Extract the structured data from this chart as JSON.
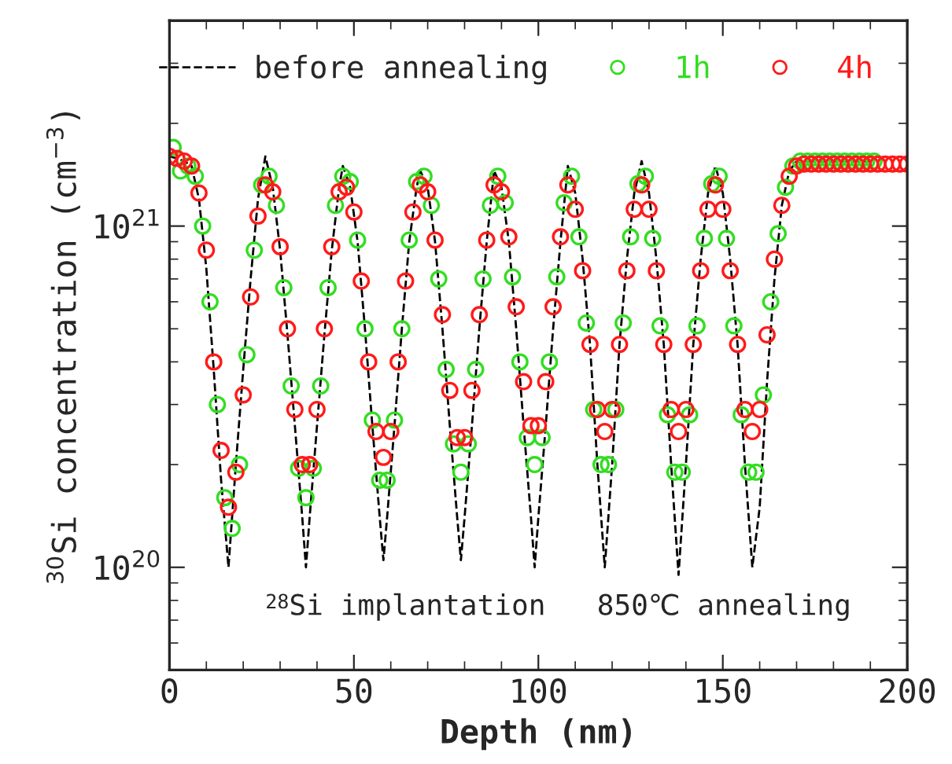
{
  "chart_data": {
    "type": "scatter",
    "xlabel": "Depth (nm)",
    "ylabel": "$^{30}$Si concentration (cm$^{−3}$)",
    "log": "y",
    "xlim": [
      0,
      200
    ],
    "ylim": [
      5e+19,
      4e+21
    ],
    "xticks": [
      0,
      {
        "value": 10,
        "label": null
      },
      {
        "value": 20,
        "label": null
      },
      {
        "value": 30,
        "label": null
      },
      {
        "value": 40,
        "label": null
      },
      50,
      {
        "value": 60,
        "label": null
      },
      {
        "value": 70,
        "label": null
      },
      {
        "value": 80,
        "label": null
      },
      {
        "value": 90,
        "label": null
      },
      100,
      {
        "value": 110,
        "label": null
      },
      {
        "value": 120,
        "label": null
      },
      {
        "value": 130,
        "label": null
      },
      {
        "value": 140,
        "label": null
      },
      150,
      {
        "value": 160,
        "label": null
      },
      {
        "value": 170,
        "label": null
      },
      {
        "value": 180,
        "label": null
      },
      {
        "value": 190,
        "label": null
      },
      200
    ],
    "yticks": [
      {
        "value": 6e+19,
        "label": null
      },
      {
        "value": 7e+19,
        "label": null
      },
      {
        "value": 8e+19,
        "label": null
      },
      {
        "value": 9e+19,
        "label": null
      },
      {
        "value": 1e+20,
        "label": "10$^{20}$"
      },
      {
        "value": 2e+20,
        "label": null
      },
      {
        "value": 3e+20,
        "label": null
      },
      {
        "value": 4e+20,
        "label": null
      },
      {
        "value": 5e+20,
        "label": null
      },
      {
        "value": 6e+20,
        "label": null
      },
      {
        "value": 7e+20,
        "label": null
      },
      {
        "value": 8e+20,
        "label": null
      },
      {
        "value": 9e+20,
        "label": null
      },
      {
        "value": 1e+21,
        "label": "10$^{21}$"
      },
      {
        "value": 2e+21,
        "label": null
      },
      {
        "value": 3e+21,
        "label": null
      }
    ],
    "grid": false,
    "legend": "top",
    "annotations": [
      "$^{28}$Si implantation   850℃ annealing"
    ],
    "series": [
      {
        "name": "before annealing",
        "type": "line",
        "line_style": "dashed",
        "marker": "none",
        "color": "#000000",
        "x": [
          0,
          2,
          4,
          6,
          8,
          10,
          12,
          14,
          16,
          18,
          20,
          22,
          24,
          26,
          28,
          30,
          32,
          34,
          36,
          37,
          38,
          40,
          42,
          44,
          46,
          47,
          49,
          51,
          53,
          55,
          57,
          58,
          59,
          61,
          63,
          65,
          67,
          68,
          70,
          72,
          74,
          76,
          78,
          79,
          80,
          82,
          84,
          86,
          88,
          90,
          92,
          94,
          96,
          98,
          99,
          100,
          102,
          104,
          106,
          108,
          110,
          112,
          114,
          116,
          118,
          120,
          122,
          124,
          126,
          128,
          130,
          132,
          134,
          136,
          138,
          140,
          142,
          144,
          146,
          148,
          150,
          152,
          154,
          156,
          158,
          160,
          162,
          164,
          166,
          168,
          170,
          180,
          190
        ],
        "values": [
          1.6e+21,
          1.58e+21,
          1.55e+21,
          1.5e+21,
          1.2e+21,
          7.5e+20,
          3.8e+20,
          1.8e+20,
          1e+20,
          2e+20,
          3.8e+20,
          7e+20,
          1.2e+21,
          1.6e+21,
          1.3e+21,
          8.5e+20,
          4.8e+20,
          2.6e+20,
          1.4e+20,
          1e+20,
          1.4e+20,
          2.6e+20,
          4.8e+20,
          8.5e+20,
          1.3e+21,
          1.5e+21,
          1.3e+21,
          9e+20,
          5e+20,
          2.6e+20,
          1.4e+20,
          1.05e+20,
          1.4e+20,
          2.6e+20,
          5e+20,
          9e+20,
          1.3e+21,
          1.45e+21,
          1.3e+21,
          9e+20,
          5e+20,
          2.6e+20,
          1.4e+20,
          1.05e+20,
          1.4e+20,
          2.6e+20,
          5e+20,
          9e+20,
          1.45e+21,
          1.3e+21,
          9e+20,
          5e+20,
          2.6e+20,
          1.4e+20,
          1e+20,
          1.4e+20,
          2.6e+20,
          5e+20,
          9e+20,
          1.5e+21,
          1.25e+21,
          8e+20,
          4.5e+20,
          2e+20,
          1e+20,
          2e+20,
          4.5e+20,
          8e+20,
          1.25e+21,
          1.55e+21,
          1.25e+21,
          8e+20,
          4.5e+20,
          2e+20,
          9.5e+19,
          2e+20,
          4.5e+20,
          8e+20,
          1.25e+21,
          1.5e+21,
          1.25e+21,
          8e+20,
          4.5e+20,
          2e+20,
          1e+20,
          1.5e+20,
          3.5e+20,
          7e+20,
          1.15e+21,
          1.45e+21,
          1.55e+21,
          1.55e+21,
          1.55e+21
        ]
      },
      {
        "name": "1h",
        "marker": "circle",
        "color": "#33dd22",
        "x": [
          1,
          3,
          5,
          7,
          9,
          11,
          13,
          15,
          17,
          19,
          21,
          23,
          25,
          27,
          29,
          31,
          33,
          35,
          37,
          39,
          41,
          43,
          45,
          47,
          49,
          51,
          53,
          55,
          57,
          59,
          61,
          63,
          65,
          67,
          69,
          71,
          73,
          75,
          77,
          79,
          81,
          83,
          85,
          87,
          89,
          91,
          93,
          95,
          97,
          99,
          101,
          103,
          105,
          107,
          109,
          111,
          113,
          115,
          117,
          119,
          121,
          123,
          125,
          127,
          129,
          131,
          133,
          135,
          137,
          139,
          141,
          143,
          145,
          147,
          149,
          151,
          153,
          155,
          157,
          159,
          161,
          163,
          165,
          167,
          169,
          171,
          173,
          175,
          177,
          179,
          181,
          183,
          185,
          187,
          189,
          191
        ],
        "values": [
          1.7e+21,
          1.45e+21,
          1.5e+21,
          1.4e+21,
          1e+21,
          6e+20,
          3e+20,
          1.6e+20,
          1.3e+20,
          2e+20,
          4.2e+20,
          8.5e+20,
          1.32e+21,
          1.4e+21,
          1.15e+21,
          6.6e+20,
          3.4e+20,
          1.95e+20,
          1.6e+20,
          1.95e+20,
          3.4e+20,
          6.6e+20,
          1.15e+21,
          1.4e+21,
          1.35e+21,
          9.1e+20,
          5e+20,
          2.7e+20,
          1.8e+20,
          1.8e+20,
          2.7e+20,
          5e+20,
          9.1e+20,
          1.35e+21,
          1.4e+21,
          1.15e+21,
          7e+20,
          3.8e+20,
          2.3e+20,
          1.9e+20,
          2.3e+20,
          3.8e+20,
          7e+20,
          1.15e+21,
          1.4e+21,
          1.17e+21,
          7.1e+20,
          4e+20,
          2.4e+20,
          2e+20,
          2.4e+20,
          4e+20,
          7.1e+20,
          1.17e+21,
          1.4e+21,
          9.3e+20,
          5.2e+20,
          2.9e+20,
          2e+20,
          2e+20,
          2.9e+20,
          5.2e+20,
          9.3e+20,
          1.33e+21,
          1.4e+21,
          9.2e+20,
          5.1e+20,
          2.8e+20,
          1.9e+20,
          1.9e+20,
          2.8e+20,
          5.1e+20,
          9.2e+20,
          1.33e+21,
          1.4e+21,
          9.2e+20,
          5.1e+20,
          2.8e+20,
          1.9e+20,
          1.9e+20,
          3.2e+20,
          6e+20,
          9.5e+20,
          1.3e+21,
          1.5e+21,
          1.55e+21,
          1.55e+21,
          1.55e+21,
          1.55e+21,
          1.55e+21,
          1.55e+21,
          1.55e+21,
          1.55e+21,
          1.55e+21,
          1.55e+21,
          1.55e+21
        ]
      },
      {
        "name": "4h",
        "marker": "circle",
        "color": "#ff1a1a",
        "x": [
          0,
          2,
          4,
          6,
          8,
          10,
          12,
          14,
          16,
          18,
          20,
          22,
          24,
          26,
          28,
          30,
          32,
          34,
          36,
          38,
          40,
          42,
          44,
          46,
          48,
          50,
          52,
          54,
          56,
          58,
          60,
          62,
          64,
          66,
          68,
          70,
          72,
          74,
          76,
          78,
          80,
          82,
          84,
          86,
          88,
          90,
          92,
          94,
          96,
          98,
          100,
          102,
          104,
          106,
          108,
          110,
          112,
          114,
          116,
          118,
          120,
          122,
          124,
          126,
          128,
          130,
          132,
          134,
          136,
          138,
          140,
          142,
          144,
          146,
          148,
          150,
          152,
          154,
          156,
          158,
          160,
          162,
          164,
          166,
          168,
          170,
          172,
          174,
          176,
          178,
          180,
          182,
          184,
          186,
          188,
          190,
          192,
          194,
          196,
          198,
          200
        ],
        "values": [
          1.6e+21,
          1.58e+21,
          1.55e+21,
          1.5e+21,
          1.25e+21,
          8.5e+20,
          4e+20,
          2.2e+20,
          1.5e+20,
          1.9e+20,
          3.2e+20,
          6.2e+20,
          1.07e+21,
          1.32e+21,
          1.26e+21,
          8.7e+20,
          5e+20,
          2.9e+20,
          2e+20,
          2e+20,
          2.9e+20,
          5e+20,
          8.7e+20,
          1.26e+21,
          1.3e+21,
          1.1e+21,
          6.9e+20,
          4e+20,
          2.5e+20,
          2.1e+20,
          2.5e+20,
          4e+20,
          6.9e+20,
          1.1e+21,
          1.32e+21,
          1.26e+21,
          9.1e+20,
          5.5e+20,
          3.3e+20,
          2.4e+20,
          2.4e+20,
          3.3e+20,
          5.5e+20,
          9.1e+20,
          1.32e+21,
          1.26e+21,
          9.3e+20,
          5.8e+20,
          3.5e+20,
          2.6e+20,
          2.6e+20,
          3.5e+20,
          5.8e+20,
          9.3e+20,
          1.32e+21,
          1.12e+21,
          7.4e+20,
          4.5e+20,
          2.9e+20,
          2.5e+20,
          2.9e+20,
          4.5e+20,
          7.4e+20,
          1.12e+21,
          1.32e+21,
          1.12e+21,
          7.4e+20,
          4.5e+20,
          2.9e+20,
          2.5e+20,
          2.9e+20,
          4.5e+20,
          7.4e+20,
          1.12e+21,
          1.32e+21,
          1.12e+21,
          7.4e+20,
          4.5e+20,
          2.9e+20,
          2.5e+20,
          2.9e+20,
          4.8e+20,
          8e+20,
          1.15e+21,
          1.4e+21,
          1.5e+21,
          1.52e+21,
          1.52e+21,
          1.52e+21,
          1.52e+21,
          1.52e+21,
          1.52e+21,
          1.52e+21,
          1.52e+21,
          1.52e+21,
          1.52e+21,
          1.52e+21,
          1.52e+21,
          1.52e+21,
          1.52e+21,
          1.52e+21
        ]
      }
    ]
  }
}
